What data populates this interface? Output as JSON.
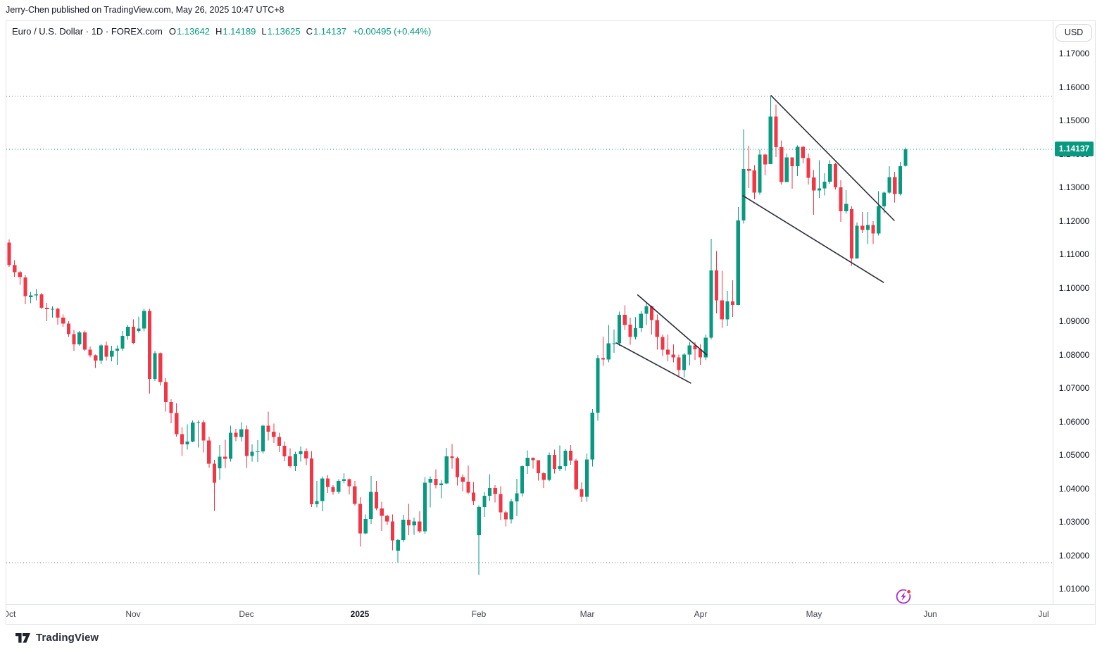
{
  "attribution": "Jerry-Chen published on TradingView.com, May 26, 2025 10:47 UTC+8",
  "header": {
    "symbol_title": "Euro / U.S. Dollar · 1D · FOREX.com",
    "ohlc_items": [
      {
        "label": "O",
        "value": "1.13642"
      },
      {
        "label": "H",
        "value": "1.14189"
      },
      {
        "label": "L",
        "value": "1.13625"
      },
      {
        "label": "C",
        "value": "1.14137"
      }
    ],
    "change": "+0.00495 (+0.44%)"
  },
  "axis_right": {
    "currency_button": "USD",
    "last_price_badge": "1.14137"
  },
  "footer": {
    "logo_text": "TradingView"
  },
  "colors": {
    "up": "#089981",
    "down": "#F23645",
    "text": "#131722",
    "muted": "#434651",
    "frame": "#e0e3eb",
    "trendline": "#2a2e39",
    "level_gray": "#787b86",
    "spark": "#ab2cc4",
    "spark_dot": "#f23645"
  },
  "chart_data": {
    "type": "candlestick",
    "symbol": "Euro / U.S. Dollar",
    "timeframe": "1D",
    "exchange": "FOREX.com",
    "y_axis": {
      "min": 1.01,
      "max": 1.17,
      "tick_step": 0.01,
      "tick_format_decimals": 5
    },
    "x_ticks": [
      {
        "label": "Oct",
        "i": 0
      },
      {
        "label": "Nov",
        "i": 23
      },
      {
        "label": "Dec",
        "i": 44
      },
      {
        "label": "2025",
        "i": 65,
        "year": true
      },
      {
        "label": "Feb",
        "i": 87
      },
      {
        "label": "Mar",
        "i": 107
      },
      {
        "label": "Apr",
        "i": 128
      },
      {
        "label": "May",
        "i": 149
      },
      {
        "label": "Jun",
        "i": 170.6
      },
      {
        "label": "Jul",
        "i": 191.5
      }
    ],
    "levels": [
      {
        "price": 1.15725,
        "role": "range-high",
        "color": "#787b86",
        "style": "dotted"
      },
      {
        "price": 1.01775,
        "role": "range-low",
        "color": "#787b86",
        "style": "dotted"
      },
      {
        "price": 1.14137,
        "role": "last-price",
        "color": "#089981",
        "style": "dotted"
      }
    ],
    "trendlines": [
      {
        "from": [
          116.4,
          1.0978
        ],
        "to": [
          129.2,
          1.0799
        ]
      },
      {
        "from": [
          112.4,
          1.0835
        ],
        "to": [
          126.2,
          1.0715
        ]
      },
      {
        "from": [
          141.1,
          1.1574
        ],
        "to": [
          163.9,
          1.1201
        ]
      },
      {
        "from": [
          135.9,
          1.1275
        ],
        "to": [
          161.9,
          1.1016
        ]
      }
    ],
    "candles": [
      [
        1.1135,
        1.1144,
        1.1062,
        1.1067
      ],
      [
        1.1067,
        1.1082,
        1.1033,
        1.1046
      ],
      [
        1.1046,
        1.105,
        1.1008,
        1.1031
      ],
      [
        1.1031,
        1.1038,
        1.0951,
        1.0975
      ],
      [
        1.0972,
        1.0987,
        1.0954,
        1.0977
      ],
      [
        1.0977,
        1.0996,
        1.0962,
        1.098
      ],
      [
        1.098,
        1.0984,
        1.0936,
        1.094
      ],
      [
        1.094,
        1.0955,
        1.09,
        1.0936
      ],
      [
        1.0936,
        1.0944,
        1.091,
        1.0937
      ],
      [
        1.0937,
        1.094,
        1.0889,
        1.091
      ],
      [
        1.091,
        1.092,
        1.0883,
        1.0893
      ],
      [
        1.0893,
        1.09,
        1.0853,
        1.0861
      ],
      [
        1.0861,
        1.0874,
        1.0811,
        1.083
      ],
      [
        1.083,
        1.087,
        1.0826,
        1.0866
      ],
      [
        1.0866,
        1.0872,
        1.0811,
        1.0815
      ],
      [
        1.0815,
        1.0824,
        1.0792,
        1.0798
      ],
      [
        1.0798,
        1.08,
        1.076,
        1.0782
      ],
      [
        1.0782,
        1.0832,
        1.0772,
        1.0827
      ],
      [
        1.0827,
        1.0839,
        1.0782,
        1.0794
      ],
      [
        1.0794,
        1.0826,
        1.078,
        1.0812
      ],
      [
        1.0812,
        1.0827,
        1.0769,
        1.0818
      ],
      [
        1.0818,
        1.0871,
        1.0812,
        1.0856
      ],
      [
        1.0856,
        1.0888,
        1.0844,
        1.0883
      ],
      [
        1.0883,
        1.0905,
        1.0832,
        1.0835
      ],
      [
        1.087,
        1.0914,
        1.0865,
        1.0878
      ],
      [
        1.0878,
        1.0937,
        1.0869,
        1.093
      ],
      [
        1.093,
        1.0937,
        1.0683,
        1.0727
      ],
      [
        1.0727,
        1.081,
        1.0721,
        1.0804
      ],
      [
        1.0804,
        1.0806,
        1.0707,
        1.0718
      ],
      [
        1.0718,
        1.0729,
        1.0629,
        1.0658
      ],
      [
        1.0658,
        1.0666,
        1.0595,
        1.0625
      ],
      [
        1.0625,
        1.0655,
        1.0555,
        1.0562
      ],
      [
        1.0562,
        1.0583,
        1.0497,
        1.0532
      ],
      [
        1.0532,
        1.0592,
        1.0516,
        1.054
      ],
      [
        1.054,
        1.0603,
        1.0538,
        1.0597
      ],
      [
        1.0597,
        1.0603,
        1.0522,
        1.0598
      ],
      [
        1.0598,
        1.0604,
        1.0507,
        1.0543
      ],
      [
        1.0543,
        1.0555,
        1.0462,
        1.0474
      ],
      [
        1.0474,
        1.0485,
        1.0333,
        1.0417
      ],
      [
        1.046,
        1.053,
        1.0425,
        1.0495
      ],
      [
        1.0495,
        1.0545,
        1.0461,
        1.0488
      ],
      [
        1.0488,
        1.0587,
        1.048,
        1.0566
      ],
      [
        1.0566,
        1.0578,
        1.0541,
        1.0554
      ],
      [
        1.0554,
        1.0598,
        1.054,
        1.0577
      ],
      [
        1.0577,
        1.0588,
        1.0461,
        1.0497
      ],
      [
        1.0497,
        1.0532,
        1.048,
        1.051
      ],
      [
        1.051,
        1.0544,
        1.0479,
        1.0511
      ],
      [
        1.0511,
        1.059,
        1.0504,
        1.0587
      ],
      [
        1.0587,
        1.0629,
        1.0543,
        1.057
      ],
      [
        1.057,
        1.0594,
        1.0536,
        1.0554
      ],
      [
        1.0554,
        1.0566,
        1.0508,
        1.0527
      ],
      [
        1.0527,
        1.054,
        1.0481,
        1.0496
      ],
      [
        1.0496,
        1.052,
        1.0461,
        1.0466
      ],
      [
        1.0466,
        1.051,
        1.0452,
        1.0502
      ],
      [
        1.0502,
        1.0525,
        1.048,
        1.0512
      ],
      [
        1.0512,
        1.052,
        1.047,
        1.0489
      ],
      [
        1.0489,
        1.0512,
        1.0344,
        1.0353
      ],
      [
        1.0353,
        1.0422,
        1.0343,
        1.0362
      ],
      [
        1.0362,
        1.0436,
        1.0332,
        1.043
      ],
      [
        1.043,
        1.044,
        1.0386,
        1.0404
      ],
      [
        1.0404,
        1.0409,
        1.0381,
        1.0389
      ],
      [
        1.0389,
        1.0427,
        1.0384,
        1.0422
      ],
      [
        1.0422,
        1.0445,
        1.0415,
        1.0427
      ],
      [
        1.0427,
        1.043,
        1.0382,
        1.0406
      ],
      [
        1.0406,
        1.0422,
        1.0348,
        1.0354
      ],
      [
        1.0354,
        1.0374,
        1.0226,
        1.0265
      ],
      [
        1.0265,
        1.0322,
        1.0263,
        1.0308
      ],
      [
        1.0308,
        1.0437,
        1.0294,
        1.039
      ],
      [
        1.039,
        1.0422,
        1.0335,
        1.034
      ],
      [
        1.034,
        1.036,
        1.0273,
        1.0318
      ],
      [
        1.0318,
        1.0321,
        1.0291,
        1.0301
      ],
      [
        1.0301,
        1.0322,
        1.0215,
        1.0244
      ],
      [
        1.0214,
        1.0249,
        1.0178,
        1.0245
      ],
      [
        1.0245,
        1.0321,
        1.024,
        1.0306
      ],
      [
        1.0306,
        1.0354,
        1.026,
        1.0289
      ],
      [
        1.0289,
        1.0313,
        1.0261,
        1.0301
      ],
      [
        1.0301,
        1.0332,
        1.0266,
        1.0272
      ],
      [
        1.0272,
        1.0434,
        1.0264,
        1.0417
      ],
      [
        1.0417,
        1.0436,
        1.0343,
        1.0428
      ],
      [
        1.0428,
        1.0457,
        1.04,
        1.041
      ],
      [
        1.041,
        1.0425,
        1.0371,
        1.0415
      ],
      [
        1.0415,
        1.0521,
        1.0413,
        1.0496
      ],
      [
        1.0496,
        1.0533,
        1.0459,
        1.0491
      ],
      [
        1.0491,
        1.0495,
        1.0408,
        1.0434
      ],
      [
        1.0434,
        1.0442,
        1.0392,
        1.042
      ],
      [
        1.042,
        1.0468,
        1.0383,
        1.0387
      ],
      [
        1.0387,
        1.0419,
        1.0351,
        1.0362
      ],
      [
        1.026,
        1.035,
        1.0141,
        1.0344
      ],
      [
        1.0344,
        1.0388,
        1.0315,
        1.0378
      ],
      [
        1.0378,
        1.0442,
        1.0362,
        1.0401
      ],
      [
        1.0401,
        1.041,
        1.0358,
        1.0383
      ],
      [
        1.0383,
        1.0406,
        1.0305,
        1.0328
      ],
      [
        1.0328,
        1.0334,
        1.0286,
        1.0307
      ],
      [
        1.0307,
        1.0368,
        1.0295,
        1.0361
      ],
      [
        1.0361,
        1.0428,
        1.0317,
        1.0385
      ],
      [
        1.0385,
        1.0468,
        1.0376,
        1.0466
      ],
      [
        1.0466,
        1.0514,
        1.0443,
        1.0492
      ],
      [
        1.0492,
        1.0493,
        1.0459,
        1.0484
      ],
      [
        1.0484,
        1.0484,
        1.0423,
        1.0445
      ],
      [
        1.0445,
        1.0448,
        1.0401,
        1.0425
      ],
      [
        1.0425,
        1.0507,
        1.0421,
        1.05
      ],
      [
        1.05,
        1.0516,
        1.0444,
        1.0458
      ],
      [
        1.0458,
        1.0528,
        1.0452,
        1.0466
      ],
      [
        1.0466,
        1.0518,
        1.0453,
        1.0513
      ],
      [
        1.0513,
        1.0529,
        1.0471,
        1.0483
      ],
      [
        1.0483,
        1.0488,
        1.0395,
        1.0398
      ],
      [
        1.0398,
        1.0418,
        1.0359,
        1.0375
      ],
      [
        1.0375,
        1.0504,
        1.036,
        1.0486
      ],
      [
        1.0486,
        1.0637,
        1.0465,
        1.0626
      ],
      [
        1.0626,
        1.0799,
        1.0602,
        1.0789
      ],
      [
        1.0789,
        1.0854,
        1.0766,
        1.0785
      ],
      [
        1.0785,
        1.0888,
        1.0777,
        1.0834
      ],
      [
        1.0834,
        1.0875,
        1.0805,
        1.0834
      ],
      [
        1.0834,
        1.0928,
        1.0826,
        1.0919
      ],
      [
        1.0919,
        1.0947,
        1.0874,
        1.0889
      ],
      [
        1.0889,
        1.091,
        1.0829,
        1.0853
      ],
      [
        1.0853,
        1.0912,
        1.0845,
        1.0879
      ],
      [
        1.0879,
        1.093,
        1.0867,
        1.0922
      ],
      [
        1.0922,
        1.0954,
        1.0888,
        1.0944
      ],
      [
        1.0944,
        1.0946,
        1.086,
        1.0903
      ],
      [
        1.0903,
        1.092,
        1.0815,
        1.0853
      ],
      [
        1.0853,
        1.086,
        1.0796,
        1.0815
      ],
      [
        1.0815,
        1.086,
        1.078,
        1.08
      ],
      [
        1.08,
        1.083,
        1.0777,
        1.0792
      ],
      [
        1.0792,
        1.08,
        1.0733,
        1.0754
      ],
      [
        1.0754,
        1.0805,
        1.0732,
        1.08
      ],
      [
        1.08,
        1.0838,
        1.0767,
        1.0827
      ],
      [
        1.0827,
        1.0837,
        1.0784,
        1.0816
      ],
      [
        1.0816,
        1.0832,
        1.0769,
        1.0792
      ],
      [
        1.0792,
        1.086,
        1.0783,
        1.0851
      ],
      [
        1.0851,
        1.1146,
        1.0845,
        1.1052
      ],
      [
        1.1052,
        1.1109,
        1.0923,
        1.0962
      ],
      [
        1.0962,
        1.105,
        1.088,
        1.0905
      ],
      [
        1.0905,
        1.099,
        1.0885,
        1.0959
      ],
      [
        1.0959,
        1.1022,
        1.0913,
        1.0948
      ],
      [
        1.0948,
        1.1241,
        1.0947,
        1.1201
      ],
      [
        1.1201,
        1.1474,
        1.1192,
        1.1355
      ],
      [
        1.1355,
        1.1424,
        1.1298,
        1.135
      ],
      [
        1.135,
        1.1366,
        1.1264,
        1.1284
      ],
      [
        1.1284,
        1.1413,
        1.1278,
        1.1398
      ],
      [
        1.1398,
        1.1401,
        1.1336,
        1.1369
      ],
      [
        1.1369,
        1.1573,
        1.1369,
        1.1512
      ],
      [
        1.1512,
        1.1547,
        1.1391,
        1.142
      ],
      [
        1.142,
        1.144,
        1.1308,
        1.1316
      ],
      [
        1.1316,
        1.1401,
        1.1316,
        1.1389
      ],
      [
        1.1389,
        1.1389,
        1.1296,
        1.1363
      ],
      [
        1.1363,
        1.1425,
        1.1334,
        1.1421
      ],
      [
        1.1421,
        1.1424,
        1.1372,
        1.1387
      ],
      [
        1.1387,
        1.1401,
        1.1308,
        1.1329
      ],
      [
        1.1329,
        1.1352,
        1.1218,
        1.129
      ],
      [
        1.129,
        1.1381,
        1.1268,
        1.1297
      ],
      [
        1.1297,
        1.1342,
        1.1276,
        1.1317
      ],
      [
        1.1317,
        1.1381,
        1.131,
        1.1369
      ],
      [
        1.1369,
        1.1374,
        1.1294,
        1.13
      ],
      [
        1.13,
        1.1321,
        1.1197,
        1.1228
      ],
      [
        1.1228,
        1.1292,
        1.1221,
        1.125
      ],
      [
        1.1235,
        1.1243,
        1.1065,
        1.1087
      ],
      [
        1.1087,
        1.1195,
        1.1086,
        1.1185
      ],
      [
        1.1185,
        1.1226,
        1.1163,
        1.1173
      ],
      [
        1.1173,
        1.1226,
        1.113,
        1.1187
      ],
      [
        1.1187,
        1.1199,
        1.1131,
        1.1162
      ],
      [
        1.1162,
        1.1288,
        1.1156,
        1.1243
      ],
      [
        1.1243,
        1.1287,
        1.1222,
        1.1284
      ],
      [
        1.1284,
        1.1363,
        1.1281,
        1.1331
      ],
      [
        1.1331,
        1.1346,
        1.1255,
        1.128
      ],
      [
        1.128,
        1.1376,
        1.1276,
        1.1363
      ],
      [
        1.13642,
        1.14189,
        1.13625,
        1.14137
      ]
    ]
  }
}
